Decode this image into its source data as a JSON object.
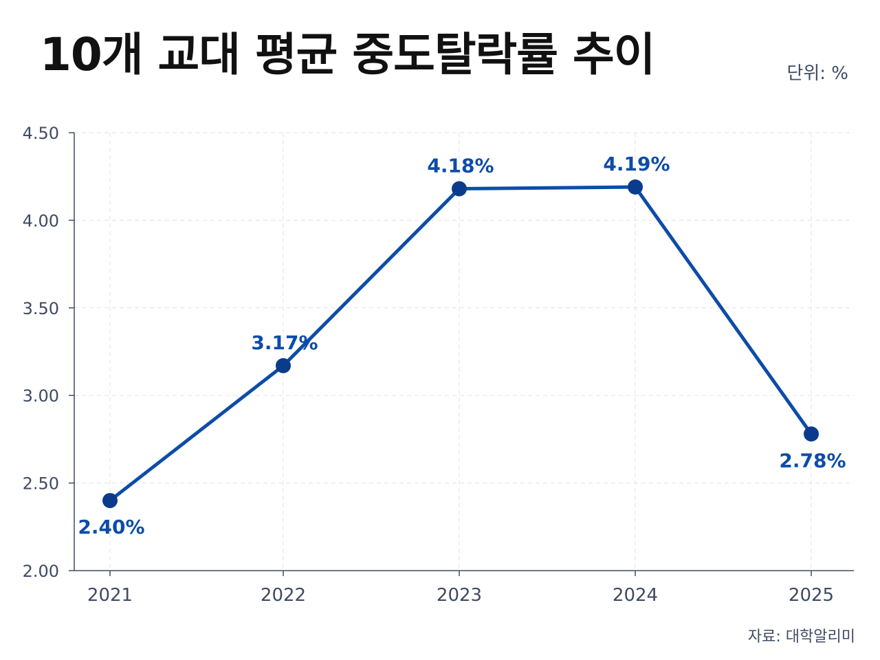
{
  "header": {
    "title": "10개 교대 평균 중도탈락률 추이",
    "unit": "단위: %"
  },
  "footer": {
    "source": "자료: 대학알리미"
  },
  "colors": {
    "line": "#0d4ca8",
    "marker": "#0b3b8c",
    "axis": "#3f4a63",
    "grid": "#dde3ea"
  },
  "chart_data": {
    "type": "line",
    "title": "10개 교대 평균 중도탈락률 추이",
    "categories": [
      "2021",
      "2022",
      "2023",
      "2024",
      "2025"
    ],
    "series": [
      {
        "values": [
          2.4,
          3.17,
          4.18,
          4.19,
          2.78
        ],
        "data_labels": [
          "2.40%",
          "3.17%",
          "4.18%",
          "4.19%",
          "2.78%"
        ],
        "label_positions": [
          "below",
          "above",
          "above",
          "above",
          "below"
        ]
      }
    ],
    "yticks": [
      "4.50",
      "4.00",
      "3.50",
      "3.00",
      "2.50",
      "2.00"
    ],
    "ylim": [
      2.0,
      4.5
    ],
    "grid": true,
    "grid_style": "dashed"
  }
}
